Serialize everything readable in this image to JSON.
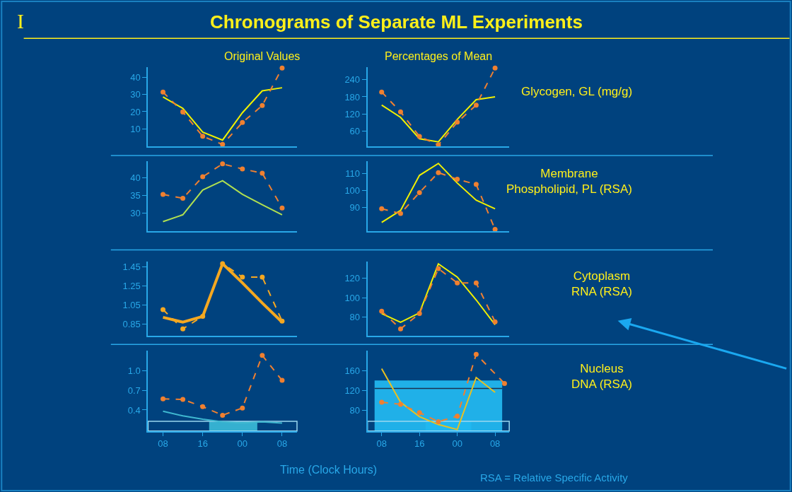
{
  "chart_data": [
    {
      "type": "line",
      "title": "Chronograms of Separate ML Experiments",
      "subtitle": "Original Values",
      "annotations": [
        "I"
      ],
      "x": [
        8,
        12,
        16,
        20,
        24,
        28,
        32
      ],
      "xlim": [
        5,
        35
      ],
      "ylim": [
        0,
        46
      ],
      "yticks": [
        10,
        20,
        30,
        40
      ],
      "tick_labels": "y",
      "grid": false,
      "series": [
        {
          "color": "#f0f000",
          "line_style": "solid",
          "marker": "none",
          "values": [
            28.6,
            21.9,
            8.1,
            3.5,
            19.4,
            32.1,
            33.9
          ]
        },
        {
          "color": "#f08030",
          "line_style": "dashed",
          "marker": "circle",
          "values": [
            31.4,
            19.8,
            5.7,
            1,
            13.7,
            23.6,
            45.3
          ]
        }
      ]
    },
    {
      "type": "line",
      "subtitle": "Percentages of Mean",
      "annotations": [
        "Glycogen, GL (mg/g)"
      ],
      "x": [
        8,
        12,
        16,
        20,
        24,
        28,
        32
      ],
      "xlim": [
        5,
        35
      ],
      "ylim": [
        7,
        285
      ],
      "yticks": [
        60,
        120,
        180,
        240
      ],
      "tick_labels": "y",
      "grid": false,
      "series": [
        {
          "color": "#f0f000",
          "line_style": "solid",
          "marker": "none",
          "values": [
            151,
            108,
            33,
            22,
            101,
            170,
            180
          ]
        },
        {
          "color": "#f08030",
          "line_style": "dashed",
          "marker": "circle",
          "values": [
            197,
            127,
            41,
            11,
            91,
            151,
            281
          ]
        }
      ]
    },
    {
      "type": "line",
      "x": [
        8,
        12,
        16,
        20,
        24,
        28,
        32
      ],
      "xlim": [
        5,
        35
      ],
      "ylim": [
        25,
        44.5
      ],
      "yticks": [
        30,
        35,
        40
      ],
      "tick_labels": "y",
      "grid": false,
      "series": [
        {
          "color": "#b0e050",
          "line_style": "solid",
          "marker": "none",
          "values": [
            27.7,
            29.6,
            36.5,
            39.1,
            35.3,
            32.4,
            29.6
          ]
        },
        {
          "color": "#f08030",
          "line_style": "dashed",
          "marker": "circle",
          "values": [
            35.3,
            34.2,
            40.2,
            43.8,
            42.4,
            41.2,
            31.5
          ]
        }
      ]
    },
    {
      "type": "line",
      "annotations": [
        "Membrane\nPhospholipid, PL (RSA)"
      ],
      "x": [
        8,
        12,
        16,
        20,
        24,
        28,
        32
      ],
      "xlim": [
        5,
        35
      ],
      "ylim": [
        76,
        117
      ],
      "yticks": [
        90,
        100,
        110
      ],
      "tick_labels": "y",
      "grid": false,
      "series": [
        {
          "color": "#f0f000",
          "line_style": "solid",
          "marker": "none",
          "values": [
            81.2,
            88.2,
            108.8,
            115.8,
            104.3,
            94.2,
            89.2
          ]
        },
        {
          "color": "#f08030",
          "line_style": "dashed",
          "marker": "circle",
          "values": [
            89.2,
            86.4,
            98.7,
            110.4,
            106.5,
            103.5,
            77.1
          ]
        }
      ]
    },
    {
      "type": "line",
      "x": [
        8,
        12,
        16,
        20,
        24,
        28,
        32
      ],
      "xlim": [
        5,
        35
      ],
      "ylim": [
        0.73,
        1.5
      ],
      "yticks": [
        0.85,
        1.05,
        1.25,
        1.45
      ],
      "tick_labels": "y",
      "grid": false,
      "series": [
        {
          "color": "#f5a820",
          "line_style": "solid",
          "marker": "none",
          "values": [
            0.92,
            0.87,
            0.93,
            1.48,
            1.28,
            1.07,
            0.87
          ]
        },
        {
          "color": "#f5a820",
          "line_style": "dashed",
          "marker": "circle",
          "values": [
            1.0,
            0.8,
            0.93,
            1.48,
            1.34,
            1.34,
            0.88
          ]
        }
      ]
    },
    {
      "type": "line",
      "annotations": [
        "Cytoplasm\nRNA (RSA)"
      ],
      "x": [
        8,
        12,
        16,
        20,
        24,
        28,
        32
      ],
      "xlim": [
        5,
        35
      ],
      "ylim": [
        61,
        137
      ],
      "yticks": [
        80,
        100,
        120
      ],
      "tick_labels": "y",
      "grid": false,
      "series": [
        {
          "color": "#f0f000",
          "line_style": "solid",
          "marker": "none",
          "values": [
            83.6,
            74.7,
            84.4,
            134.8,
            121.2,
            97.7,
            72.2
          ]
        },
        {
          "color": "#f08030",
          "line_style": "dashed",
          "marker": "circle",
          "values": [
            86,
            67.9,
            83.6,
            129.9,
            115.2,
            115.2,
            75.2
          ]
        }
      ]
    },
    {
      "type": "line",
      "xlabel": "Time (Clock Hours)",
      "x": [
        8,
        12,
        16,
        20,
        24,
        28,
        32
      ],
      "xlim": [
        5,
        35
      ],
      "xticks": [
        {
          "value": 8,
          "label": "08"
        },
        {
          "value": 16,
          "label": "16"
        },
        {
          "value": 24,
          "label": "00"
        },
        {
          "value": 32,
          "label": "08"
        }
      ],
      "ylim": [
        0.08,
        1.3
      ],
      "yticks": [
        0.4,
        0.7,
        {
          "value": 1.0,
          "label": "1.0"
        }
      ],
      "grid": false,
      "bands": [
        {
          "axis": "x",
          "from": 17.3,
          "to": 27,
          "color": "#35b0d0"
        }
      ],
      "series": [
        {
          "color": "#3fb8d0",
          "line_style": "solid",
          "marker": "none",
          "values": [
            0.38,
            0.31,
            0.26,
            0.22,
            0.2,
            0.22,
            0.2
          ]
        },
        {
          "color": "#f08030",
          "line_style": "dashed",
          "marker": "circle",
          "values": [
            0.57,
            0.56,
            0.45,
            0.32,
            0.43,
            1.23,
            0.85
          ]
        }
      ]
    },
    {
      "type": "line",
      "annotations": [
        "Nucleus\nDNA (RSA)",
        "RSA = Relative Specific Activity"
      ],
      "x": [
        8,
        12,
        16,
        20,
        24,
        28,
        32
      ],
      "xlim": [
        5,
        35
      ],
      "xticks": [
        {
          "value": 8,
          "label": "08"
        },
        {
          "value": 16,
          "label": "16"
        },
        {
          "value": 24,
          "label": "00"
        },
        {
          "value": 32,
          "label": "08"
        }
      ],
      "ylim": [
        38,
        200
      ],
      "yticks": [
        80,
        120,
        160
      ],
      "grid": false,
      "bands": [
        {
          "axis": "y",
          "from": 38,
          "to": 140,
          "color": "#20b0e8"
        },
        {
          "axis": "x",
          "from": 17.3,
          "to": 27,
          "color": "#20b8f0"
        }
      ],
      "ref_lines": [
        {
          "axis": "y",
          "value": 124,
          "color": "#1a3050"
        }
      ],
      "series": [
        {
          "color": "#e8c020",
          "line_style": "solid",
          "marker": "none",
          "values": [
            164,
            96,
            67,
            51,
            41,
            146,
            116
          ]
        },
        {
          "color": "#f08030",
          "line_style": "dashed",
          "marker": "circle",
          "x": [
            8,
            12,
            16,
            20,
            24,
            28,
            34
          ],
          "values": [
            96,
            92,
            75,
            57,
            68,
            193,
            134
          ]
        }
      ]
    }
  ]
}
